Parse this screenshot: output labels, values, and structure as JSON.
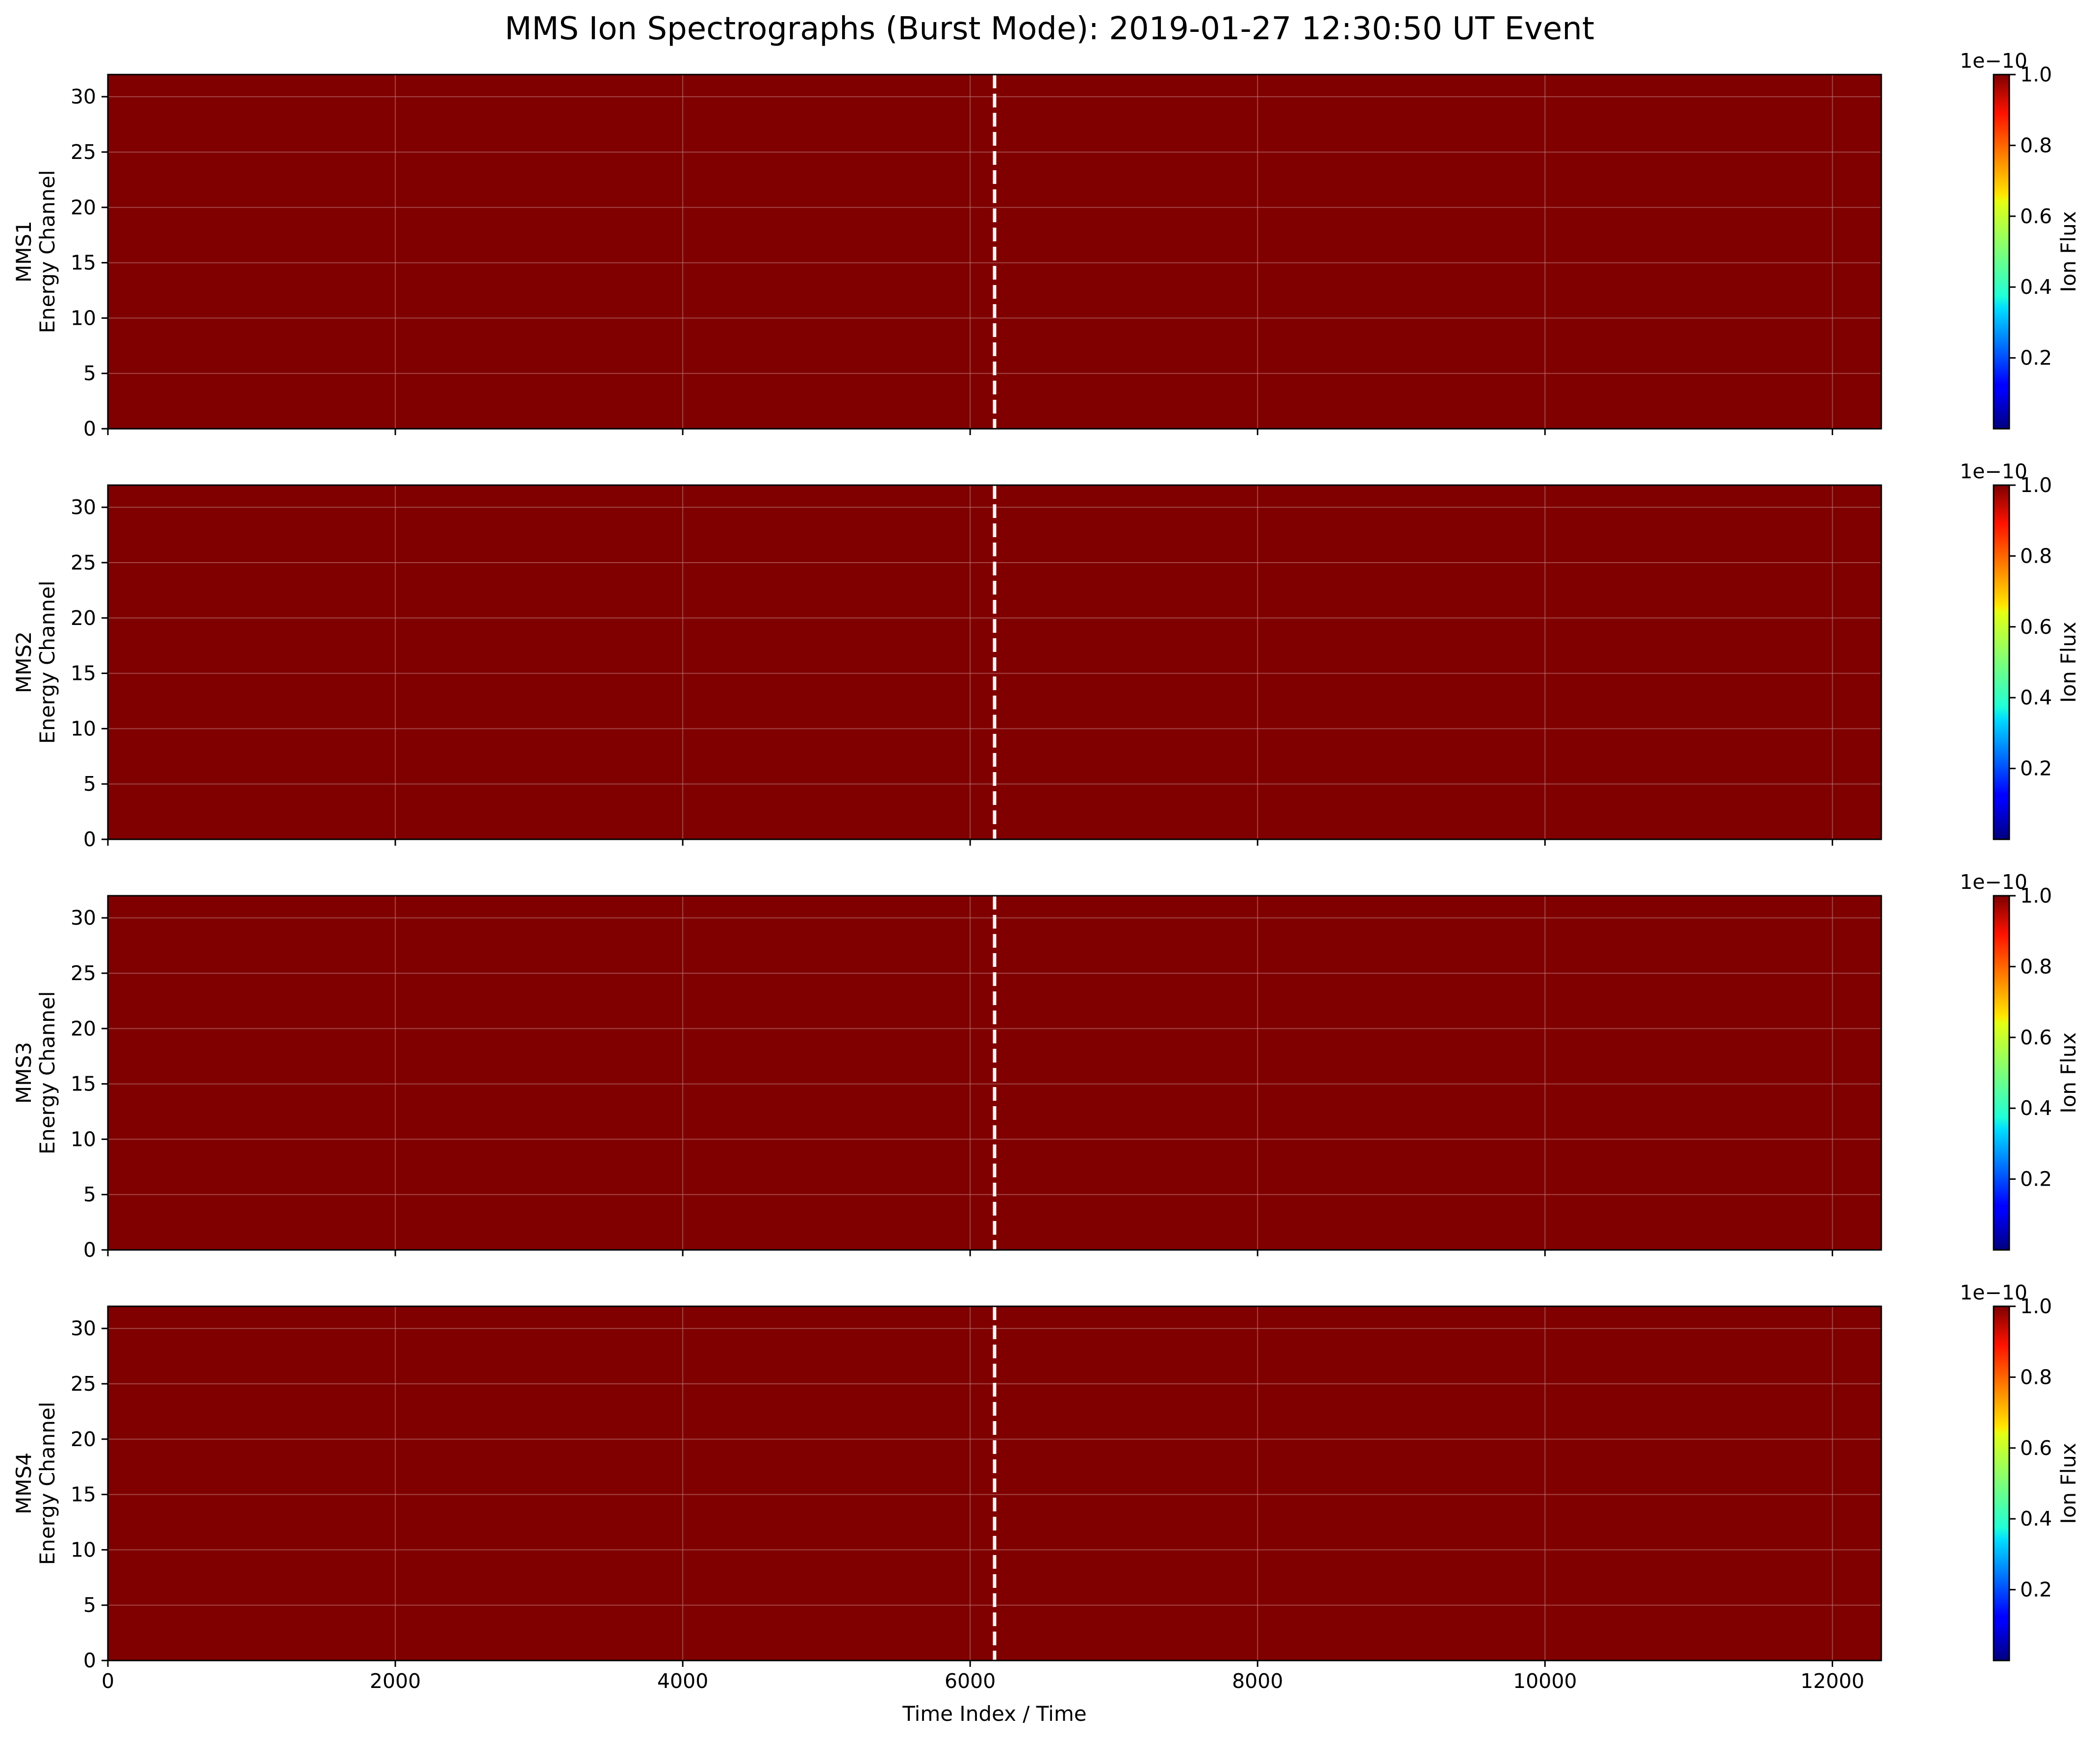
{
  "figure": {
    "title": "MMS Ion Spectrographs (Burst Mode): 2019-01-27 12:30:50 UT Event"
  },
  "chart_data": {
    "type": "heatmap",
    "title": "MMS Ion Spectrographs (Burst Mode): 2019-01-27 12:30:50 UT Event",
    "shared_x": true,
    "xlabel": "Time Index / Time",
    "xlim": [
      0,
      12340
    ],
    "xticks": [
      0,
      2000,
      4000,
      6000,
      8000,
      10000,
      12000
    ],
    "ylim": [
      0,
      32
    ],
    "yticks": [
      0,
      5,
      10,
      15,
      20,
      25,
      30
    ],
    "grid": true,
    "event_marker": {
      "x": 6170,
      "style": "dashed",
      "color": "#f5f5f5"
    },
    "colorbar": {
      "label": "Ion Flux",
      "scale_label": "1e−10",
      "range": [
        0,
        1.0
      ],
      "ticks": [
        0.2,
        0.4,
        0.6,
        0.8,
        1.0
      ],
      "tick_labels": [
        "0.2",
        "0.4",
        "0.6",
        "0.8",
        "1.0"
      ],
      "colormap": "jet",
      "fill_color": "#800000"
    },
    "panels": [
      {
        "name": "MMS1",
        "ylabel": [
          "MMS1",
          "Energy Channel"
        ],
        "flux_value": 1.0
      },
      {
        "name": "MMS2",
        "ylabel": [
          "MMS2",
          "Energy Channel"
        ],
        "flux_value": 1.0
      },
      {
        "name": "MMS3",
        "ylabel": [
          "MMS3",
          "Energy Channel"
        ],
        "flux_value": 1.0
      },
      {
        "name": "MMS4",
        "ylabel": [
          "MMS4",
          "Energy Channel"
        ],
        "flux_value": 1.0
      }
    ]
  }
}
